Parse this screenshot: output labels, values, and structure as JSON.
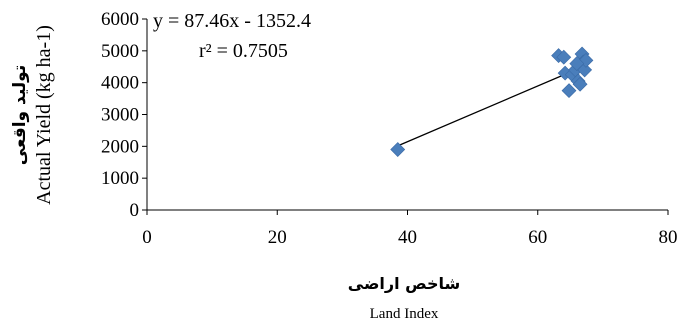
{
  "chart_data": {
    "type": "scatter",
    "title": "",
    "xlabel": "شاخص اراضی",
    "xlabel_en": "Land Index",
    "ylabel": "تولید واقعی",
    "ylabel_en": "Actual Yield (kg ha-1)",
    "xlim": [
      0,
      80
    ],
    "ylim": [
      0,
      6000
    ],
    "xticks": [
      "0",
      "20",
      "40",
      "60",
      "80"
    ],
    "yticks": [
      "0",
      "1000",
      "2000",
      "3000",
      "4000",
      "5000",
      "6000"
    ],
    "grid": false,
    "legend": "none",
    "marker": "diamond",
    "marker_color": "#4a7ebb",
    "points": [
      {
        "x": 38.5,
        "y": 1900
      },
      {
        "x": 63.2,
        "y": 4850
      },
      {
        "x": 64.0,
        "y": 4800
      },
      {
        "x": 64.2,
        "y": 4300
      },
      {
        "x": 64.8,
        "y": 3750
      },
      {
        "x": 65.3,
        "y": 4250
      },
      {
        "x": 65.8,
        "y": 4400
      },
      {
        "x": 66.2,
        "y": 4050
      },
      {
        "x": 66.5,
        "y": 3950
      },
      {
        "x": 66.8,
        "y": 4900
      },
      {
        "x": 67.0,
        "y": 4650
      },
      {
        "x": 67.2,
        "y": 4400
      },
      {
        "x": 67.4,
        "y": 4700
      },
      {
        "x": 66.0,
        "y": 4600
      }
    ],
    "trendline": {
      "type": "linear",
      "slope": 87.46,
      "intercept": -1352.4,
      "x_range": [
        38.5,
        67.5
      ],
      "color": "#000000"
    },
    "annotations": {
      "equation": "y = 87.46x - 1352.4",
      "r_squared": "r² = 0.7505"
    }
  }
}
